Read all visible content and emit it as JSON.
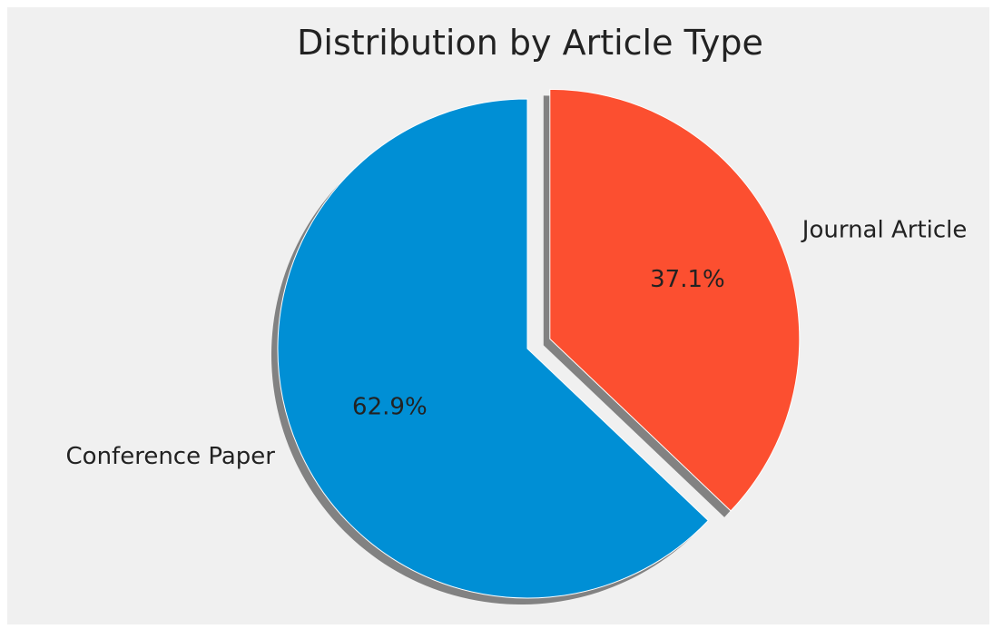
{
  "chart_data": {
    "type": "pie",
    "title": "Distribution by Article Type",
    "slices": [
      {
        "label": "Conference Paper",
        "value": 62.9,
        "pct_label": "62.9%",
        "color": "#008fd5",
        "explode": false
      },
      {
        "label": "Journal Article",
        "value": 37.1,
        "pct_label": "37.1%",
        "color": "#fc4f30",
        "explode": true
      }
    ],
    "start_angle_deg": 90,
    "direction": "counterclockwise",
    "shadow": true,
    "background_color": "#f0f0f0",
    "edge_color": "#ffffff"
  }
}
